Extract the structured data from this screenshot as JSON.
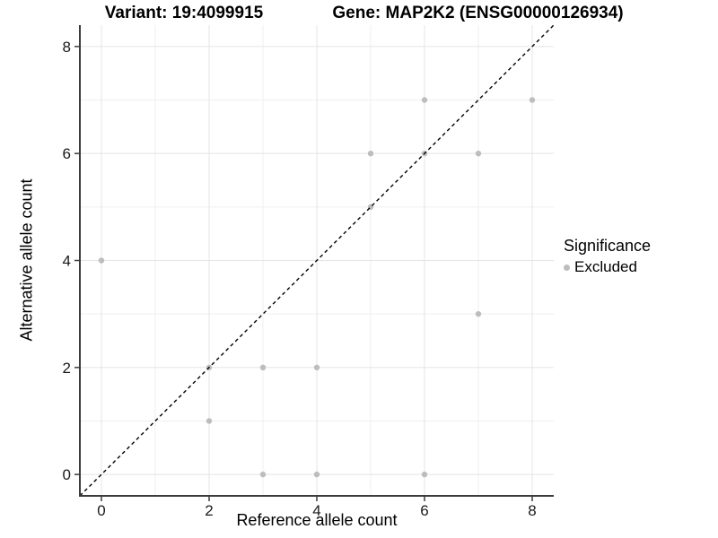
{
  "chart_data": {
    "type": "scatter",
    "title_left": "Variant: 19:4099915",
    "title_right": "Gene: MAP2K2 (ENSG00000126934)",
    "xlabel": "Reference allele count",
    "ylabel": "Alternative allele count",
    "xlim": [
      -0.4,
      8.4
    ],
    "ylim": [
      -0.4,
      8.4
    ],
    "x_ticks": [
      0,
      2,
      4,
      6,
      8
    ],
    "y_ticks": [
      0,
      2,
      4,
      6,
      8
    ],
    "x_minor_ticks": [
      1,
      3,
      5,
      7
    ],
    "y_minor_ticks": [
      1,
      3,
      5,
      7
    ],
    "grid": "major and minor, light gray on white",
    "series": [
      {
        "name": "Excluded",
        "color": "#bdbdbd",
        "points": [
          [
            0,
            4
          ],
          [
            2,
            1
          ],
          [
            2,
            2
          ],
          [
            3,
            0
          ],
          [
            3,
            2
          ],
          [
            4,
            0
          ],
          [
            4,
            2
          ],
          [
            5,
            5
          ],
          [
            5,
            6
          ],
          [
            6,
            0
          ],
          [
            6,
            6
          ],
          [
            6,
            7
          ],
          [
            7,
            3
          ],
          [
            7,
            6
          ],
          [
            8,
            7
          ]
        ]
      }
    ],
    "abline": {
      "intercept": 0,
      "slope": 1,
      "linestyle": "dashed",
      "color": "#000000"
    },
    "legend": {
      "title": "Significance",
      "position": "right",
      "items": [
        {
          "label": "Excluded",
          "marker": "circle",
          "color": "#bdbdbd"
        }
      ]
    },
    "colors": {
      "background": "#ffffff",
      "grid_major": "#e4e4e4",
      "grid_minor": "#efefef",
      "axis_line": "#3c3c3c",
      "tick_mark": "#3c3c3c",
      "tick_label": "#1a1a1a",
      "point": "#bdbdbd"
    },
    "point_radius": 3.2
  }
}
